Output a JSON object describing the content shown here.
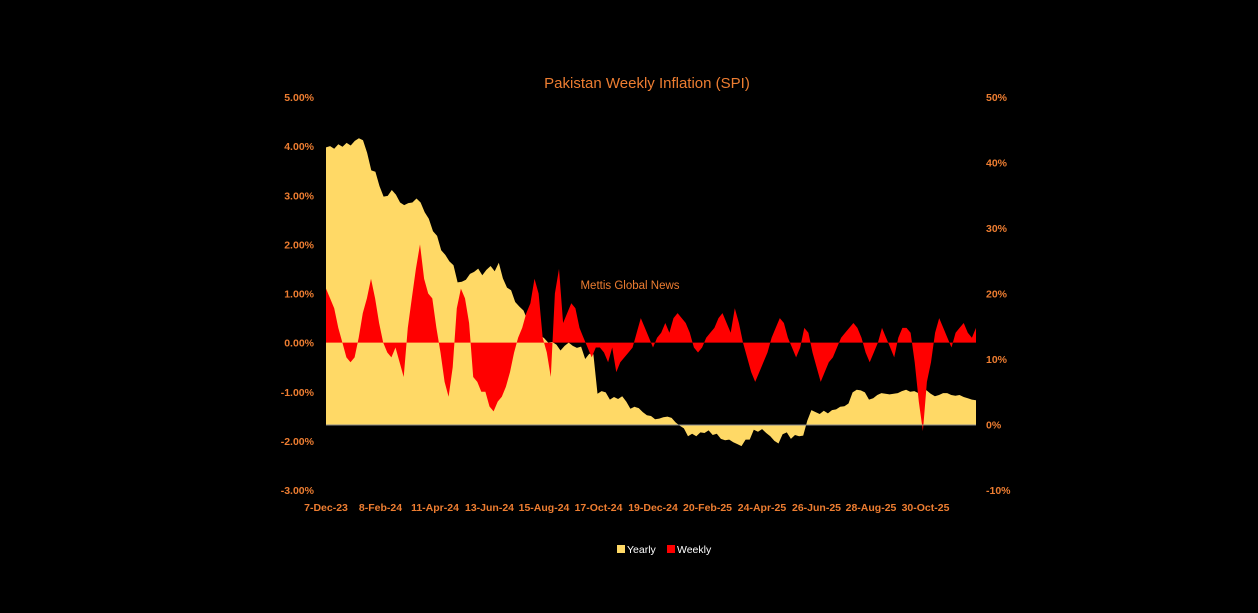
{
  "colors": {
    "background": "#000000",
    "yearly": "#ffd966",
    "weekly": "#ff0000",
    "text": "#ed7d31",
    "legend_text": "#ffffff"
  },
  "chart_data": {
    "type": "area",
    "title": "Pakistan Weekly Inflation (SPI)",
    "watermark": "Mettis Global News",
    "legend_position": "bottom",
    "x_tick_labels": [
      "7-Dec-23",
      "8-Feb-24",
      "11-Apr-24",
      "13-Jun-24",
      "15-Aug-24",
      "17-Oct-24",
      "19-Dec-24",
      "20-Feb-25",
      "24-Apr-25",
      "26-Jun-25",
      "28-Aug-25",
      "30-Oct-25"
    ],
    "y_left": {
      "label": "",
      "min": -3,
      "max": 5,
      "step": 1,
      "ticks": [
        "-3.00%",
        "-2.00%",
        "-1.00%",
        "0.00%",
        "1.00%",
        "2.00%",
        "3.00%",
        "4.00%",
        "5.00%"
      ]
    },
    "y_right": {
      "label": "",
      "min": -10,
      "max": 50,
      "step": 10,
      "ticks": [
        "-10%",
        "0%",
        "10%",
        "20%",
        "30%",
        "40%",
        "50%"
      ]
    },
    "series": [
      {
        "name": "Yearly",
        "axis": "right",
        "baseline": 0,
        "values": [
          42.3,
          42.5,
          42.1,
          42.8,
          42.4,
          43.0,
          42.6,
          43.3,
          43.7,
          43.4,
          41.5,
          38.8,
          38.6,
          36.4,
          34.8,
          34.9,
          35.8,
          35.1,
          33.9,
          33.5,
          33.8,
          33.9,
          34.5,
          33.9,
          32.4,
          31.4,
          29.5,
          28.8,
          26.6,
          25.9,
          24.9,
          24.3,
          21.7,
          21.8,
          22.1,
          23.0,
          23.3,
          23.8,
          22.8,
          23.6,
          24.2,
          23.4,
          24.7,
          22.3,
          20.9,
          20.5,
          18.7,
          18.0,
          17.4,
          15.9,
          14.6,
          14.2,
          13.6,
          13.2,
          12.5,
          12.6,
          12.2,
          11.3,
          12.0,
          12.5,
          12.0,
          11.7,
          11.9,
          10.0,
          10.8,
          10.7,
          4.7,
          5.1,
          4.9,
          3.8,
          4.2,
          3.9,
          4.3,
          3.5,
          2.4,
          2.7,
          2.5,
          1.9,
          1.4,
          1.3,
          0.8,
          0.9,
          1.1,
          1.2,
          1.0,
          0.3,
          -0.2,
          -0.6,
          -1.8,
          -1.4,
          -1.8,
          -1.2,
          -1.3,
          -0.9,
          -1.6,
          -1.4,
          -2.2,
          -2.4,
          -2.3,
          -2.7,
          -3.0,
          -3.3,
          -2.3,
          -2.3,
          -0.8,
          -1.1,
          -0.7,
          -1.3,
          -1.8,
          -2.5,
          -2.9,
          -1.5,
          -1.2,
          -2.2,
          -1.6,
          -1.8,
          -1.7,
          0.6,
          2.2,
          1.9,
          1.6,
          2.1,
          1.7,
          2.2,
          2.3,
          2.7,
          2.8,
          3.2,
          4.9,
          5.3,
          5.2,
          4.9,
          3.8,
          4.0,
          4.5,
          4.8,
          4.7,
          4.6,
          4.7,
          4.8,
          5.1,
          5.3,
          5.0,
          5.1,
          4.8,
          5.3,
          5.2,
          4.7,
          4.3,
          4.5,
          4.8,
          4.8,
          4.5,
          4.4,
          4.5,
          4.2,
          4.0,
          3.8,
          3.7
        ]
      },
      {
        "name": "Weekly",
        "axis": "left",
        "baseline": 0,
        "values": [
          1.1,
          0.9,
          0.7,
          0.3,
          0,
          -0.3,
          -0.4,
          -0.3,
          0.1,
          0.6,
          0.9,
          1.3,
          0.9,
          0.4,
          0,
          -0.2,
          -0.3,
          -0.1,
          -0.4,
          -0.7,
          0.3,
          0.9,
          1.5,
          2.0,
          1.3,
          1.0,
          0.9,
          0.3,
          -0.2,
          -0.8,
          -1.1,
          -0.5,
          0.7,
          1.1,
          0.9,
          0.4,
          -0.7,
          -0.8,
          -1.0,
          -1.0,
          -1.3,
          -1.4,
          -1.2,
          -1.1,
          -0.9,
          -0.6,
          -0.2,
          0.1,
          0.3,
          0.6,
          0.8,
          1.3,
          1.0,
          0.1,
          -0.2,
          -0.7,
          1.0,
          1.5,
          0.4,
          0.6,
          0.8,
          0.7,
          0.3,
          0.1,
          -0.1,
          -0.3,
          -0.1,
          -0.1,
          -0.2,
          -0.4,
          -0.1,
          -0.6,
          -0.4,
          -0.3,
          -0.2,
          -0.1,
          0.2,
          0.5,
          0.3,
          0.1,
          -0.1,
          0.1,
          0.2,
          0.4,
          0.2,
          0.5,
          0.6,
          0.5,
          0.4,
          0.2,
          -0.1,
          -0.2,
          -0.1,
          0.1,
          0.2,
          0.3,
          0.5,
          0.6,
          0.4,
          0.2,
          0.7,
          0.4,
          0,
          -0.3,
          -0.6,
          -0.8,
          -0.6,
          -0.4,
          -0.2,
          0.1,
          0.3,
          0.5,
          0.4,
          0.1,
          -0.1,
          -0.3,
          -0.1,
          0.3,
          0.2,
          -0.2,
          -0.5,
          -0.8,
          -0.6,
          -0.4,
          -0.3,
          -0.1,
          0.1,
          0.2,
          0.3,
          0.4,
          0.3,
          0.1,
          -0.2,
          -0.4,
          -0.2,
          0,
          0.3,
          0.1,
          -0.1,
          -0.3,
          0.1,
          0.3,
          0.3,
          0.2,
          -0.4,
          -1.2,
          -1.8,
          -0.8,
          -0.4,
          0.2,
          0.5,
          0.3,
          0.1,
          -0.1,
          0.2,
          0.3,
          0.4,
          0.2,
          0.1,
          0.3
        ]
      }
    ]
  }
}
